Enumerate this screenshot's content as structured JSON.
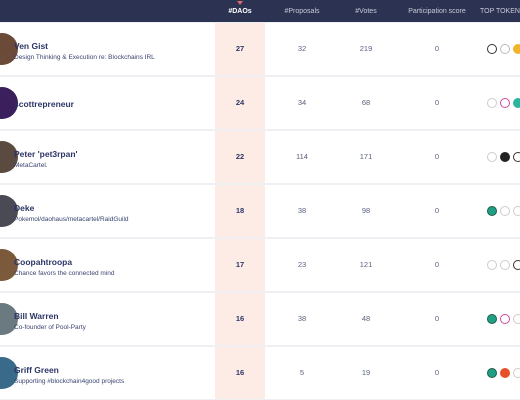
{
  "header": {
    "daos": "#DAOs",
    "proposals": "#Proposals",
    "votes": "#Votes",
    "participation": "Participation score",
    "tokens": "TOP TOKENS"
  },
  "rows": [
    {
      "name": "Ven Gist",
      "description": "Design Thinking & Execution re: Blockchains IRL",
      "daos": 27,
      "proposals": 32,
      "votes": 219,
      "score": 0
    },
    {
      "name": "scottrepreneur",
      "daos": 24,
      "proposals": 34,
      "votes": 68,
      "score": 0
    },
    {
      "name": "Peter 'pet3rpan'",
      "description": "MetaCartel.",
      "daos": 22,
      "proposals": 114,
      "votes": 171,
      "score": 0
    },
    {
      "name": "Deke",
      "description": "Pokemol/daohaus/metacartel/RaidGuild",
      "daos": 18,
      "proposals": 38,
      "votes": 98,
      "score": 0
    },
    {
      "name": "Coopahtroopa",
      "description": "Chance favors the connected mind",
      "daos": 17,
      "proposals": 23,
      "votes": 121,
      "score": 0
    },
    {
      "name": "Bill Warren",
      "description": "Co-founder of Pool-Party",
      "daos": 16,
      "proposals": 38,
      "votes": 48,
      "score": 0
    },
    {
      "name": "Griff Green",
      "description": "Supporting #blockchain4good projects",
      "daos": 16,
      "proposals": 5,
      "votes": 19,
      "score": 0
    }
  ]
}
